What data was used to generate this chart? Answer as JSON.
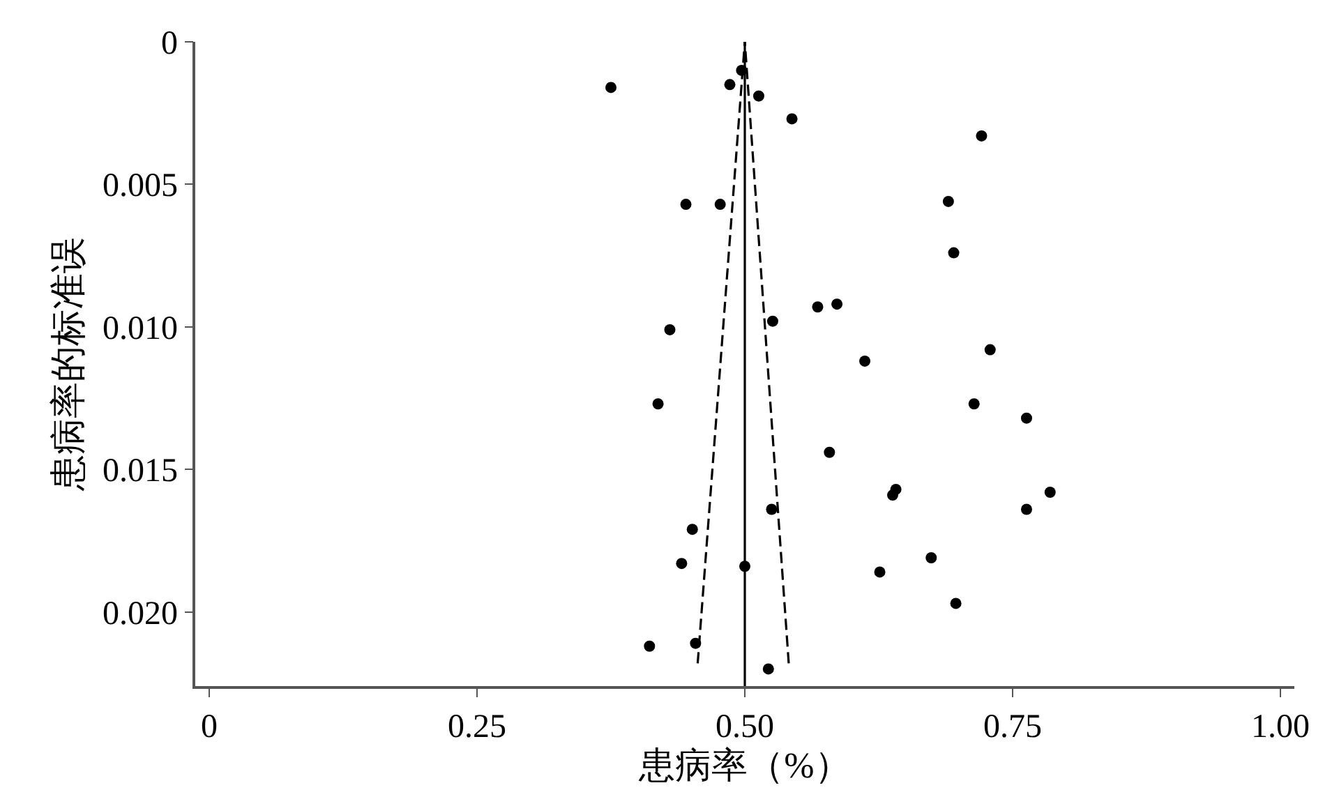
{
  "chart_data": {
    "type": "scatter",
    "xlabel": "患病率（%）",
    "ylabel": "患病率的标准误",
    "xlim": [
      -0.013,
      1.013
    ],
    "ylim": [
      0.0226,
      0
    ],
    "xticks": [
      0,
      {
        "value": 0.25,
        "label": "0.25"
      },
      {
        "value": 0.5,
        "label": "0.50"
      },
      {
        "value": 0.75,
        "label": "0.75"
      },
      {
        "value": 1,
        "label": "1.00"
      }
    ],
    "yticks": [
      0,
      0.005,
      {
        "value": 0.01,
        "label": "0.010"
      },
      0.015,
      {
        "value": 0.02,
        "label": "0.020"
      }
    ],
    "ref_lines": [
      {
        "axis": "x",
        "value": 0.5,
        "color": "#000000",
        "line_style": "solid"
      }
    ],
    "series": [
      {
        "type": "line",
        "color": "#000000",
        "line_style": "dashed",
        "marker": "none",
        "x": [
          0.456,
          0.5
        ],
        "values": [
          0.0218,
          0
        ]
      },
      {
        "type": "line",
        "color": "#000000",
        "line_style": "dashed",
        "marker": "none",
        "x": [
          0.541,
          0.5
        ],
        "values": [
          0.0218,
          0
        ]
      },
      {
        "color": "#000000",
        "marker": "circle",
        "x": [
          0.375,
          0.486,
          0.497,
          0.513,
          0.544,
          0.721,
          0.445,
          0.477,
          0.69,
          0.695,
          0.43,
          0.526,
          0.568,
          0.586,
          0.612,
          0.729,
          0.419,
          0.714,
          0.763,
          0.579,
          0.641,
          0.638,
          0.785,
          0.763,
          0.525,
          0.451,
          0.441,
          0.5,
          0.626,
          0.674,
          0.697,
          0.411,
          0.454,
          0.522
        ],
        "values": [
          0.0016,
          0.0015,
          0.001,
          0.0019,
          0.0027,
          0.0033,
          0.0057,
          0.0057,
          0.0056,
          0.0074,
          0.0101,
          0.0098,
          0.0093,
          0.0092,
          0.0112,
          0.0108,
          0.0127,
          0.0127,
          0.0132,
          0.0144,
          0.0157,
          0.0159,
          0.0158,
          0.0164,
          0.0164,
          0.0171,
          0.0183,
          0.0184,
          0.0186,
          0.0181,
          0.0197,
          0.0212,
          0.0211,
          0.022
        ]
      }
    ]
  }
}
